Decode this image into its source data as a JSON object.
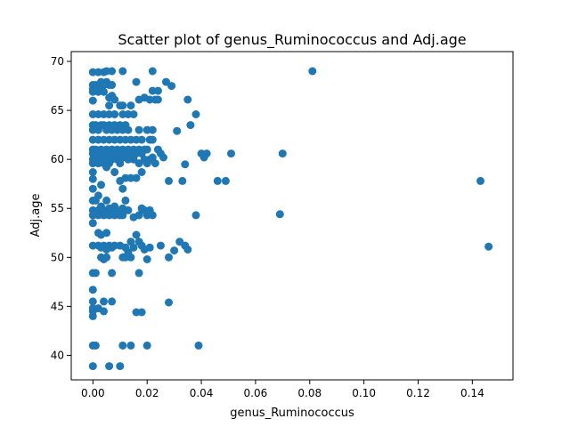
{
  "chart_data": {
    "type": "scatter",
    "title": "Scatter plot of genus_Ruminococcus and Adj.age",
    "xlabel": "genus_Ruminococcus",
    "ylabel": "Adj.age",
    "xlim": [
      -0.008,
      0.155
    ],
    "ylim": [
      37.5,
      71.0
    ],
    "x_ticks": [
      "0.00",
      "0.02",
      "0.04",
      "0.06",
      "0.08",
      "0.10",
      "0.12",
      "0.14"
    ],
    "x_tick_values": [
      0,
      0.02,
      0.04,
      0.06,
      0.08,
      0.1,
      0.12,
      0.14
    ],
    "y_ticks": [
      "40",
      "45",
      "50",
      "55",
      "60",
      "65",
      "70"
    ],
    "y_tick_values": [
      40,
      45,
      50,
      55,
      60,
      65,
      70
    ],
    "grid": false,
    "marker_color": "#1f77b4",
    "points": [
      [
        0.0,
        68.9
      ],
      [
        0.0,
        67.6
      ],
      [
        0.0,
        67.2
      ],
      [
        0.0,
        66.9
      ],
      [
        0.0,
        66.0
      ],
      [
        0.0,
        64.6
      ],
      [
        0.0,
        63.5
      ],
      [
        0.0,
        63.0
      ],
      [
        0.0,
        62.0
      ],
      [
        0.0,
        61.0
      ],
      [
        0.0,
        60.6
      ],
      [
        0.0,
        60.0
      ],
      [
        0.0,
        59.6
      ],
      [
        0.0,
        58.7
      ],
      [
        0.0,
        58.0
      ],
      [
        0.0,
        57.0
      ],
      [
        0.0,
        55.8
      ],
      [
        0.0,
        54.8
      ],
      [
        0.0,
        54.3
      ],
      [
        0.0,
        53.5
      ],
      [
        0.0,
        51.2
      ],
      [
        0.0,
        48.4
      ],
      [
        0.0,
        46.7
      ],
      [
        0.0,
        45.5
      ],
      [
        0.0,
        44.8
      ],
      [
        0.0,
        44.5
      ],
      [
        0.0,
        44.0
      ],
      [
        0.0,
        41.0
      ],
      [
        0.0,
        38.9
      ],
      [
        0.001,
        67.6
      ],
      [
        0.001,
        63.5
      ],
      [
        0.001,
        61.0
      ],
      [
        0.001,
        60.0
      ],
      [
        0.001,
        55.8
      ],
      [
        0.001,
        48.4
      ],
      [
        0.001,
        41.0
      ],
      [
        0.002,
        68.9
      ],
      [
        0.002,
        67.6
      ],
      [
        0.002,
        66.9
      ],
      [
        0.002,
        64.6
      ],
      [
        0.002,
        63.0
      ],
      [
        0.002,
        62.0
      ],
      [
        0.002,
        60.6
      ],
      [
        0.002,
        59.6
      ],
      [
        0.002,
        56.3
      ],
      [
        0.002,
        54.8
      ],
      [
        0.002,
        54.3
      ],
      [
        0.002,
        52.5
      ],
      [
        0.002,
        51.2
      ],
      [
        0.002,
        44.8
      ],
      [
        0.003,
        67.9
      ],
      [
        0.003,
        67.2
      ],
      [
        0.003,
        63.5
      ],
      [
        0.003,
        61.0
      ],
      [
        0.003,
        60.0
      ],
      [
        0.003,
        57.4
      ],
      [
        0.003,
        55.2
      ],
      [
        0.003,
        52.3
      ],
      [
        0.003,
        51.0
      ],
      [
        0.003,
        50.0
      ],
      [
        0.004,
        68.9
      ],
      [
        0.004,
        67.6
      ],
      [
        0.004,
        66.9
      ],
      [
        0.004,
        64.6
      ],
      [
        0.004,
        63.5
      ],
      [
        0.004,
        62.0
      ],
      [
        0.004,
        60.6
      ],
      [
        0.004,
        59.6
      ],
      [
        0.004,
        54.8
      ],
      [
        0.004,
        54.3
      ],
      [
        0.004,
        51.2
      ],
      [
        0.004,
        49.8
      ],
      [
        0.004,
        45.5
      ],
      [
        0.004,
        44.5
      ],
      [
        0.005,
        69.0
      ],
      [
        0.005,
        67.9
      ],
      [
        0.005,
        63.0
      ],
      [
        0.005,
        61.0
      ],
      [
        0.005,
        60.6
      ],
      [
        0.005,
        60.0
      ],
      [
        0.005,
        59.2
      ],
      [
        0.005,
        55.8
      ],
      [
        0.005,
        54.5
      ],
      [
        0.005,
        52.5
      ],
      [
        0.005,
        50.8
      ],
      [
        0.005,
        50.0
      ],
      [
        0.006,
        67.6
      ],
      [
        0.006,
        66.3
      ],
      [
        0.006,
        65.5
      ],
      [
        0.006,
        64.6
      ],
      [
        0.006,
        63.5
      ],
      [
        0.006,
        62.0
      ],
      [
        0.006,
        60.2
      ],
      [
        0.006,
        59.6
      ],
      [
        0.006,
        55.0
      ],
      [
        0.006,
        54.3
      ],
      [
        0.006,
        51.2
      ],
      [
        0.006,
        38.9
      ],
      [
        0.007,
        69.0
      ],
      [
        0.007,
        67.6
      ],
      [
        0.007,
        66.5
      ],
      [
        0.007,
        63.0
      ],
      [
        0.007,
        61.0
      ],
      [
        0.007,
        60.6
      ],
      [
        0.007,
        60.0
      ],
      [
        0.007,
        54.8
      ],
      [
        0.007,
        51.0
      ],
      [
        0.007,
        48.4
      ],
      [
        0.007,
        45.5
      ],
      [
        0.008,
        66.1
      ],
      [
        0.008,
        64.6
      ],
      [
        0.008,
        63.5
      ],
      [
        0.008,
        62.0
      ],
      [
        0.008,
        60.6
      ],
      [
        0.008,
        58.7
      ],
      [
        0.008,
        55.2
      ],
      [
        0.008,
        54.3
      ],
      [
        0.008,
        51.2
      ],
      [
        0.009,
        63.0
      ],
      [
        0.009,
        61.0
      ],
      [
        0.009,
        60.0
      ],
      [
        0.009,
        54.8
      ],
      [
        0.01,
        65.5
      ],
      [
        0.01,
        63.5
      ],
      [
        0.01,
        62.0
      ],
      [
        0.01,
        60.6
      ],
      [
        0.01,
        59.6
      ],
      [
        0.01,
        57.8
      ],
      [
        0.01,
        54.3
      ],
      [
        0.01,
        51.2
      ],
      [
        0.01,
        38.9
      ],
      [
        0.011,
        69.0
      ],
      [
        0.011,
        65.5
      ],
      [
        0.011,
        64.6
      ],
      [
        0.011,
        63.0
      ],
      [
        0.011,
        61.0
      ],
      [
        0.011,
        60.2
      ],
      [
        0.011,
        57.0
      ],
      [
        0.011,
        55.0
      ],
      [
        0.011,
        54.8
      ],
      [
        0.011,
        54.3
      ],
      [
        0.011,
        50.0
      ],
      [
        0.011,
        41.0
      ],
      [
        0.012,
        63.5
      ],
      [
        0.012,
        62.0
      ],
      [
        0.012,
        60.6
      ],
      [
        0.012,
        58.1
      ],
      [
        0.012,
        55.8
      ],
      [
        0.012,
        51.0
      ],
      [
        0.012,
        50.0
      ],
      [
        0.013,
        64.6
      ],
      [
        0.013,
        63.0
      ],
      [
        0.013,
        61.0
      ],
      [
        0.013,
        60.0
      ],
      [
        0.013,
        54.8
      ],
      [
        0.013,
        50.5
      ],
      [
        0.014,
        65.5
      ],
      [
        0.014,
        62.0
      ],
      [
        0.014,
        60.6
      ],
      [
        0.014,
        58.1
      ],
      [
        0.014,
        51.6
      ],
      [
        0.014,
        50.0
      ],
      [
        0.014,
        41.0
      ],
      [
        0.015,
        64.6
      ],
      [
        0.015,
        61.0
      ],
      [
        0.015,
        60.0
      ],
      [
        0.015,
        54.1
      ],
      [
        0.015,
        51.0
      ],
      [
        0.016,
        67.9
      ],
      [
        0.016,
        62.0
      ],
      [
        0.016,
        60.6
      ],
      [
        0.016,
        58.1
      ],
      [
        0.016,
        52.3
      ],
      [
        0.016,
        44.4
      ],
      [
        0.017,
        66.1
      ],
      [
        0.017,
        63.0
      ],
      [
        0.017,
        61.0
      ],
      [
        0.017,
        59.6
      ],
      [
        0.017,
        54.3
      ],
      [
        0.017,
        51.6
      ],
      [
        0.017,
        48.4
      ],
      [
        0.018,
        62.0
      ],
      [
        0.018,
        60.6
      ],
      [
        0.018,
        58.7
      ],
      [
        0.018,
        55.0
      ],
      [
        0.018,
        51.2
      ],
      [
        0.018,
        44.4
      ],
      [
        0.019,
        66.3
      ],
      [
        0.019,
        61.0
      ],
      [
        0.019,
        60.0
      ],
      [
        0.019,
        54.8
      ],
      [
        0.019,
        50.8
      ],
      [
        0.02,
        63.0
      ],
      [
        0.02,
        61.0
      ],
      [
        0.02,
        59.6
      ],
      [
        0.02,
        54.3
      ],
      [
        0.02,
        49.8
      ],
      [
        0.02,
        41.0
      ],
      [
        0.021,
        66.1
      ],
      [
        0.021,
        62.0
      ],
      [
        0.021,
        60.0
      ],
      [
        0.021,
        54.8
      ],
      [
        0.021,
        51.0
      ],
      [
        0.022,
        69.0
      ],
      [
        0.022,
        67.0
      ],
      [
        0.022,
        63.0
      ],
      [
        0.022,
        62.0
      ],
      [
        0.022,
        60.2
      ],
      [
        0.022,
        54.3
      ],
      [
        0.023,
        66.1
      ],
      [
        0.023,
        59.6
      ],
      [
        0.024,
        67.0
      ],
      [
        0.024,
        66.1
      ],
      [
        0.024,
        61.0
      ],
      [
        0.025,
        51.2
      ],
      [
        0.025,
        60.6
      ],
      [
        0.026,
        60.2
      ],
      [
        0.027,
        67.9
      ],
      [
        0.028,
        57.8
      ],
      [
        0.028,
        50.0
      ],
      [
        0.028,
        45.4
      ],
      [
        0.029,
        67.5
      ],
      [
        0.03,
        50.7
      ],
      [
        0.031,
        62.9
      ],
      [
        0.032,
        51.6
      ],
      [
        0.033,
        57.8
      ],
      [
        0.034,
        51.2
      ],
      [
        0.034,
        59.5
      ],
      [
        0.035,
        66.1
      ],
      [
        0.035,
        50.8
      ],
      [
        0.036,
        63.5
      ],
      [
        0.038,
        64.6
      ],
      [
        0.038,
        54.3
      ],
      [
        0.039,
        41.0
      ],
      [
        0.04,
        60.6
      ],
      [
        0.041,
        60.2
      ],
      [
        0.042,
        60.6
      ],
      [
        0.046,
        57.8
      ],
      [
        0.049,
        57.8
      ],
      [
        0.051,
        60.6
      ],
      [
        0.069,
        54.4
      ],
      [
        0.07,
        60.6
      ],
      [
        0.081,
        69.0
      ],
      [
        0.143,
        57.8
      ],
      [
        0.146,
        51.1
      ]
    ]
  }
}
